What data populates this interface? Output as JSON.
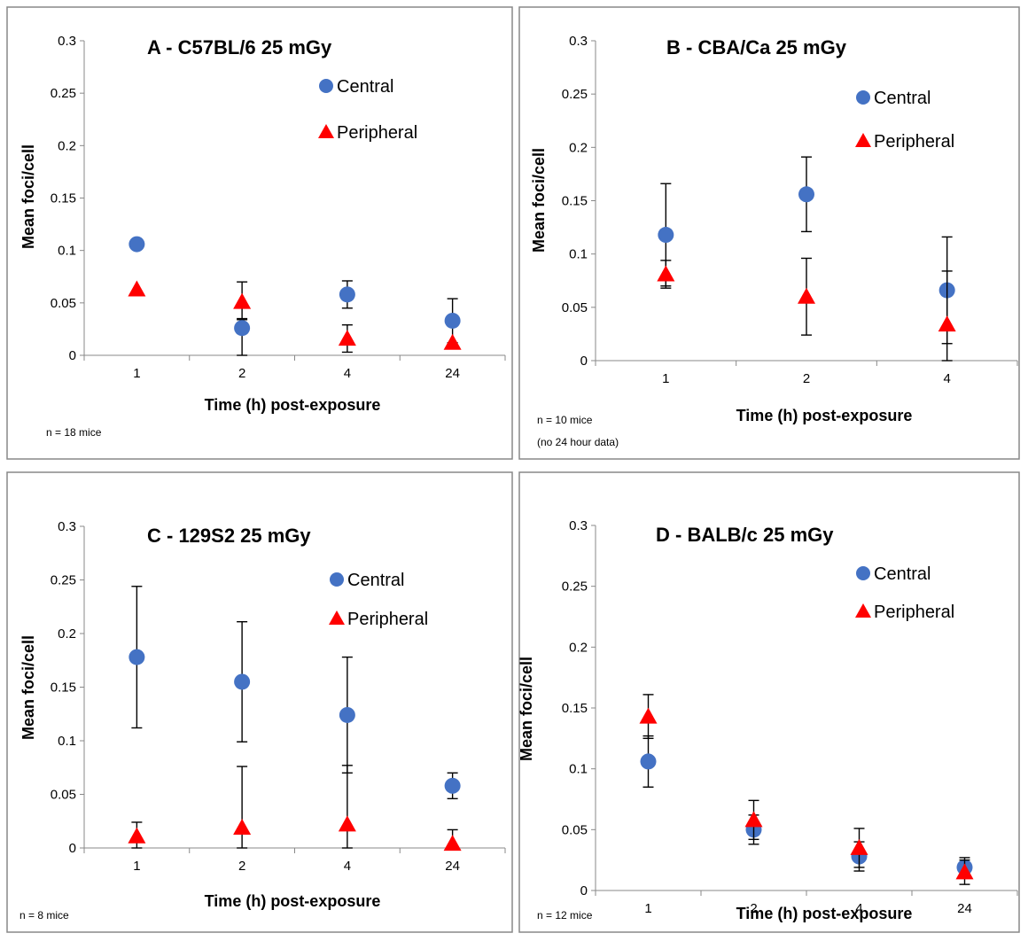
{
  "colors": {
    "central": "#4472C4",
    "peripheral": "#FF0000"
  },
  "chart_data": [
    {
      "type": "scatter",
      "title": "A - C57BL/6 25 mGy",
      "xlabel": "Time (h) post-exposure",
      "ylabel": "Mean foci/cell",
      "categories": [
        "1",
        "2",
        "4",
        "24"
      ],
      "ylim": [
        0,
        0.3
      ],
      "yticks": [
        "0",
        "0.05",
        "0.1",
        "0.15",
        "0.2",
        "0.25",
        "0.3"
      ],
      "legend_position": "top-right",
      "note": [
        "n = 18 mice"
      ],
      "series": [
        {
          "name": "Central",
          "marker": "circle",
          "values": [
            0.106,
            0.026,
            0.058,
            0.033
          ],
          "err_low": [
            null,
            0.026,
            0.013,
            0.021
          ],
          "err_high": [
            null,
            0.008,
            0.013,
            0.021
          ]
        },
        {
          "name": "Peripheral",
          "marker": "triangle",
          "values": [
            0.063,
            0.051,
            0.016,
            0.012
          ],
          "err_low": [
            null,
            0.016,
            0.013,
            null
          ],
          "err_high": [
            null,
            0.019,
            0.013,
            null
          ]
        }
      ]
    },
    {
      "type": "scatter",
      "title": "B - CBA/Ca 25 mGy",
      "xlabel": "Time (h) post-exposure",
      "ylabel": "Mean foci/cell",
      "categories": [
        "1",
        "2",
        "4"
      ],
      "ylim": [
        0,
        0.3
      ],
      "yticks": [
        "0",
        "0.05",
        "0.1",
        "0.15",
        "0.2",
        "0.25",
        "0.3"
      ],
      "legend_position": "top-right",
      "note": [
        "n = 10 mice",
        "(no 24 hour data)"
      ],
      "series": [
        {
          "name": "Central",
          "marker": "circle",
          "values": [
            0.118,
            0.156,
            0.066
          ],
          "err_low": [
            0.048,
            0.035,
            0.066
          ],
          "err_high": [
            0.048,
            0.035,
            0.05
          ]
        },
        {
          "name": "Peripheral",
          "marker": "triangle",
          "values": [
            0.081,
            0.06,
            0.034
          ],
          "err_low": [
            0.013,
            0.036,
            0.018
          ],
          "err_high": [
            0.013,
            0.036,
            0.05
          ]
        }
      ]
    },
    {
      "type": "scatter",
      "title": "C - 129S2 25 mGy",
      "xlabel": "Time (h) post-exposure",
      "ylabel": "Mean foci/cell",
      "categories": [
        "1",
        "2",
        "4",
        "24"
      ],
      "ylim": [
        0,
        0.3
      ],
      "yticks": [
        "0",
        "0.05",
        "0.1",
        "0.15",
        "0.2",
        "0.25",
        "0.3"
      ],
      "legend_position": "top-right",
      "note": [
        "n = 8 mice"
      ],
      "series": [
        {
          "name": "Central",
          "marker": "circle",
          "values": [
            0.178,
            0.155,
            0.124,
            0.058
          ],
          "err_low": [
            0.066,
            0.056,
            0.054,
            0.012
          ],
          "err_high": [
            0.066,
            0.056,
            0.054,
            0.012
          ]
        },
        {
          "name": "Peripheral",
          "marker": "triangle",
          "values": [
            0.011,
            0.019,
            0.022,
            0.004
          ],
          "err_low": [
            0.011,
            0.019,
            0.022,
            0.004
          ],
          "err_high": [
            0.013,
            0.057,
            0.055,
            0.013
          ]
        }
      ]
    },
    {
      "type": "scatter",
      "title": "D - BALB/c 25 mGy",
      "xlabel": "Time (h) post-exposure",
      "ylabel": "Mean foci/cell",
      "categories": [
        "1",
        "2",
        "4",
        "24"
      ],
      "ylim": [
        0,
        0.3
      ],
      "yticks": [
        "0",
        "0.05",
        "0.1",
        "0.15",
        "0.2",
        "0.25",
        "0.3"
      ],
      "legend_position": "top-right",
      "note": [
        "n = 12 mice"
      ],
      "series": [
        {
          "name": "Central",
          "marker": "circle",
          "values": [
            0.106,
            0.05,
            0.028,
            0.019
          ],
          "err_low": [
            0.021,
            0.012,
            0.012,
            null
          ],
          "err_high": [
            0.021,
            0.012,
            0.012,
            0.008
          ]
        },
        {
          "name": "Peripheral",
          "marker": "triangle",
          "values": [
            0.143,
            0.058,
            0.035,
            0.015
          ],
          "err_low": [
            0.018,
            0.016,
            0.016,
            0.01
          ],
          "err_high": [
            0.018,
            0.016,
            0.016,
            0.01
          ]
        }
      ]
    }
  ]
}
